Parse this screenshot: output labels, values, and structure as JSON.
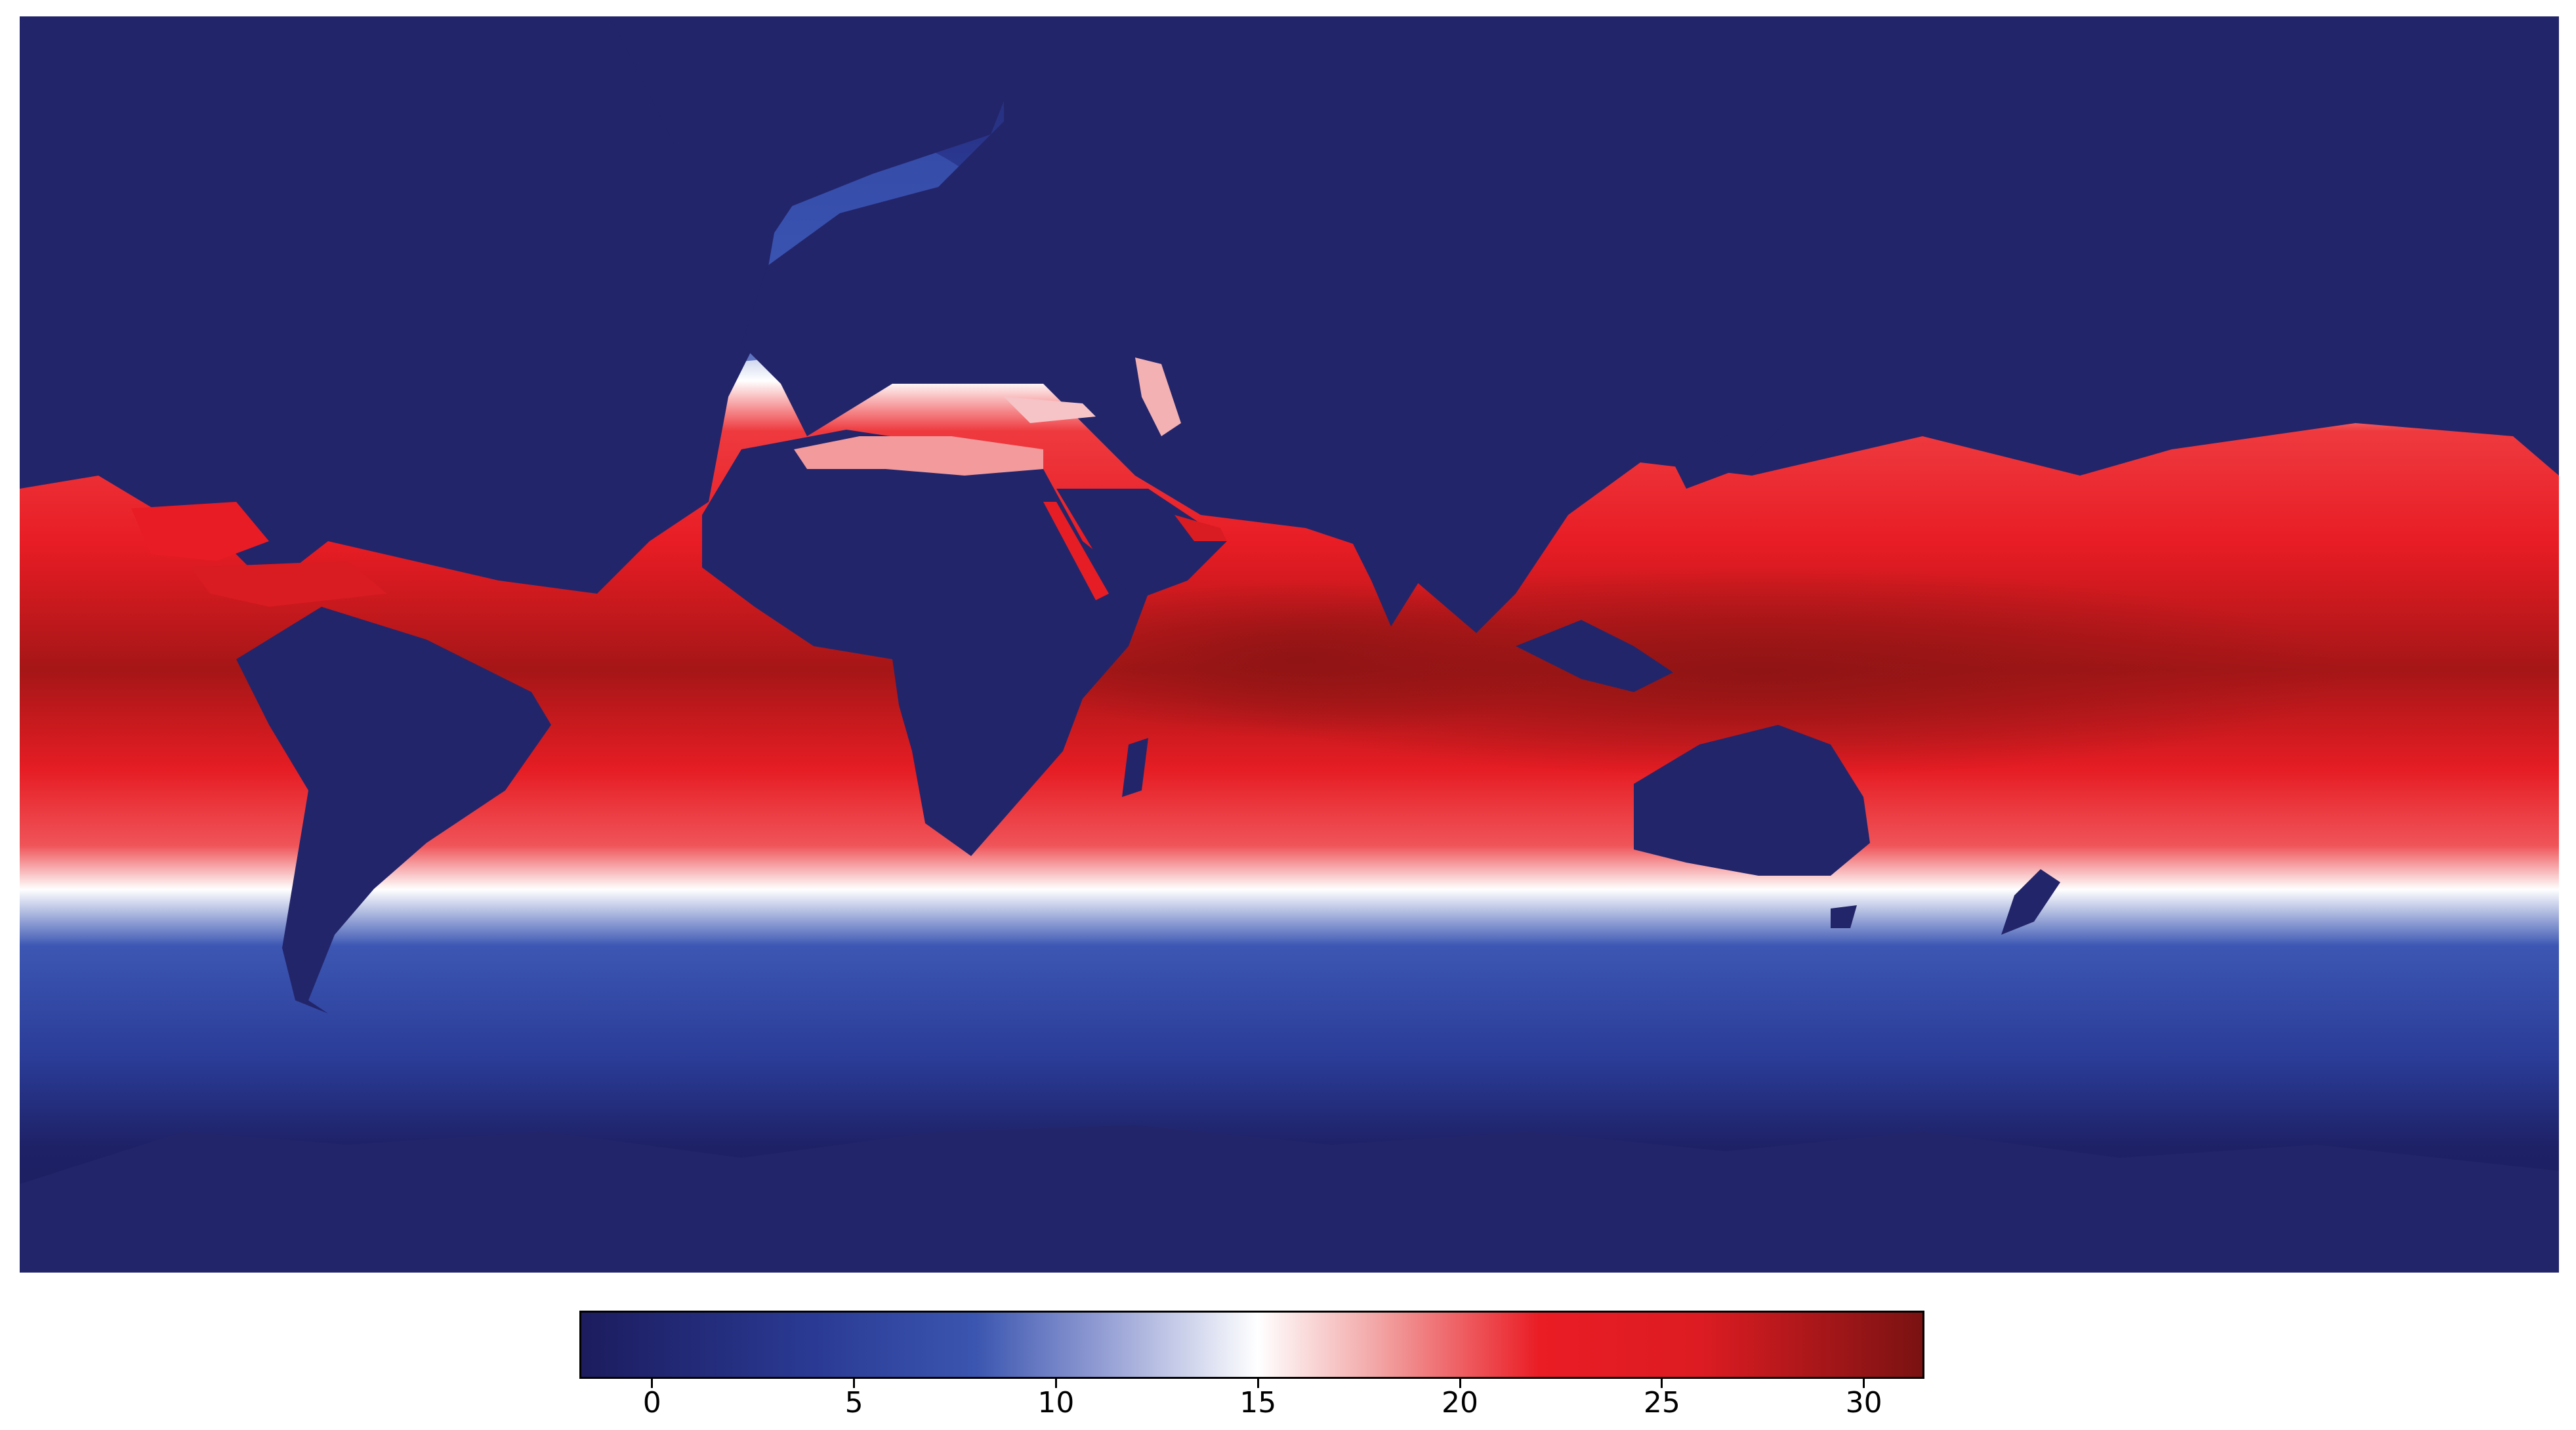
{
  "map": {
    "variable_colors": {
      "land": "#23256a",
      "coldest": "#1c1c5e",
      "cold": "#2f48a8",
      "mid": "#ffffff",
      "warm": "#ea1c24",
      "hottest": "#7a1212"
    }
  },
  "colorbar": {
    "min": -1.8,
    "max": 31.5,
    "ticks": [
      {
        "value": 0,
        "label": "0"
      },
      {
        "value": 5,
        "label": "5"
      },
      {
        "value": 10,
        "label": "10"
      },
      {
        "value": 15,
        "label": "15"
      },
      {
        "value": 20,
        "label": "20"
      },
      {
        "value": 25,
        "label": "25"
      },
      {
        "value": 30,
        "label": "30"
      }
    ],
    "stops": [
      {
        "value": -1.8,
        "color": "#1c1c5e"
      },
      {
        "value": 4,
        "color": "#2a3a94"
      },
      {
        "value": 8,
        "color": "#3b56b0"
      },
      {
        "value": 11,
        "color": "#8f9ad2"
      },
      {
        "value": 15,
        "color": "#ffffff"
      },
      {
        "value": 18,
        "color": "#f2a4a4"
      },
      {
        "value": 22,
        "color": "#ea1c24"
      },
      {
        "value": 26,
        "color": "#dc1c22"
      },
      {
        "value": 31.5,
        "color": "#7a1212"
      }
    ]
  }
}
